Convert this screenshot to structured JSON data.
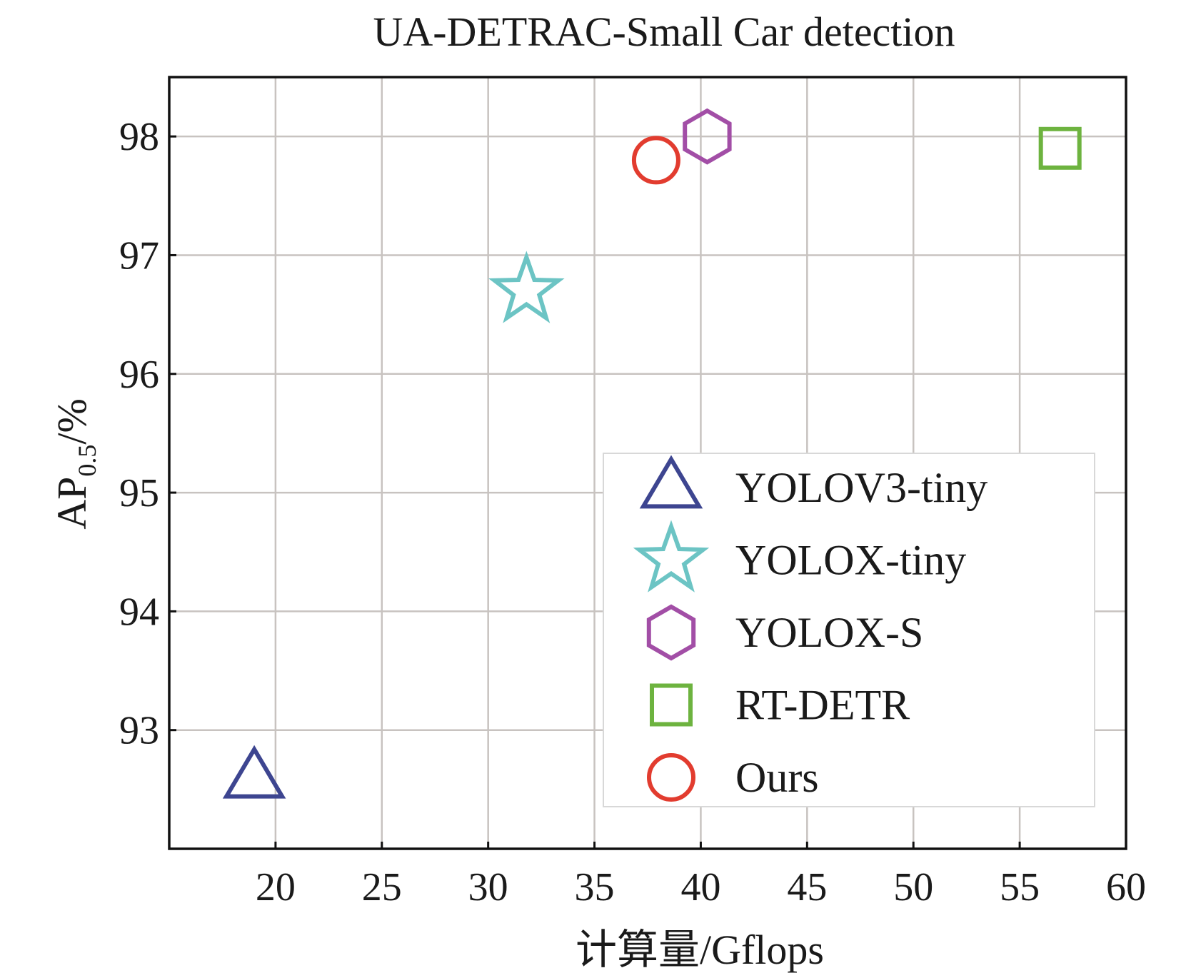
{
  "chart_data": {
    "type": "scatter",
    "title": "UA-DETRAC-Small Car detection",
    "xlabel": "计算量/Gflops",
    "ylabel": {
      "main": "AP",
      "subscript": "0.5",
      "suffix": "/%"
    },
    "xlim": [
      15,
      60
    ],
    "ylim": [
      92.0,
      98.5
    ],
    "xticks": [
      20,
      25,
      30,
      35,
      40,
      45,
      50,
      55,
      60
    ],
    "yticks": [
      93,
      94,
      95,
      96,
      97,
      98
    ],
    "grid": true,
    "legend_position": "lower-right",
    "series": [
      {
        "name": "YOLOV3-tiny",
        "marker": "triangle",
        "color": "#3d4590",
        "x": 19.0,
        "y": 92.6
      },
      {
        "name": "YOLOX-tiny",
        "marker": "star",
        "color": "#6cc4c4",
        "x": 31.8,
        "y": 96.7
      },
      {
        "name": "YOLOX-S",
        "marker": "hexagon",
        "color": "#a24ea6",
        "x": 40.3,
        "y": 98.0
      },
      {
        "name": "RT-DETR",
        "marker": "square",
        "color": "#6db33f",
        "x": 56.9,
        "y": 97.9
      },
      {
        "name": "Ours",
        "marker": "circle",
        "color": "#e23c2f",
        "x": 37.9,
        "y": 97.8
      }
    ]
  }
}
